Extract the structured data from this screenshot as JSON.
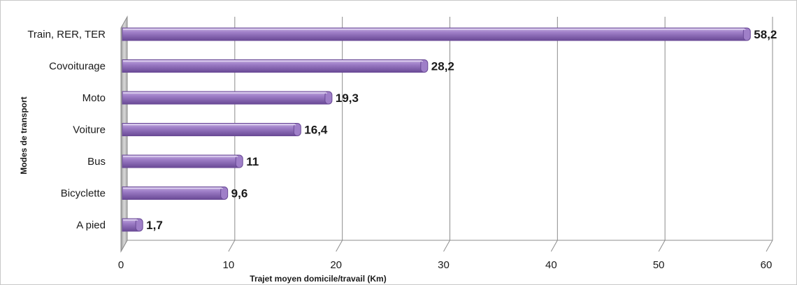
{
  "chart_data": {
    "type": "bar",
    "orientation": "horizontal",
    "style": "3d",
    "categories": [
      "Train, RER, TER",
      "Covoiturage",
      "Moto",
      "Voiture",
      "Bus",
      "Bicyclette",
      "A pied"
    ],
    "values": [
      58.2,
      28.2,
      19.3,
      16.4,
      11,
      9.6,
      1.7
    ],
    "value_labels": [
      "58,2",
      "28,2",
      "19,3",
      "16,4",
      "11",
      "9,6",
      "1,7"
    ],
    "x_ticks": [
      "0",
      "10",
      "20",
      "30",
      "40",
      "50",
      "60"
    ],
    "xlim": [
      0,
      60
    ],
    "xlabel": "Trajet moyen domicile/travail (Km)",
    "ylabel": "Modes de transport",
    "grid": true,
    "legend": "none",
    "colors": {
      "bar": "#9f7fc8",
      "bar_top": "#c4aee0",
      "bar_dark": "#6a4a96",
      "grid": "#8c8c8c",
      "wall": "#c9c9c9"
    }
  }
}
